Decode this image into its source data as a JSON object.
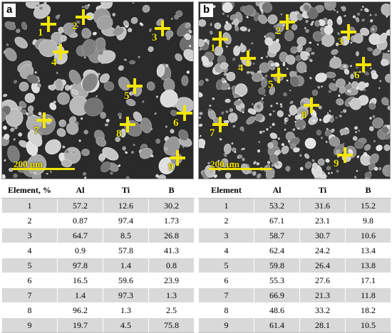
{
  "colors": {
    "marker": "#f3e600",
    "row_shade": "#d9d9d9"
  },
  "panel_a": {
    "letter": "a",
    "scale_label": "200 μm",
    "markers": [
      "1",
      "2",
      "3",
      "4",
      "5",
      "6",
      "7",
      "8",
      "9"
    ]
  },
  "panel_b": {
    "letter": "b",
    "scale_label": "200 μm",
    "markers": [
      "1",
      "2",
      "3",
      "4",
      "5",
      "6",
      "7",
      "8",
      "9"
    ]
  },
  "table_a": {
    "headers": [
      "Element, %",
      "Al",
      "Ti",
      "B"
    ],
    "rows": [
      [
        "1",
        "57.2",
        "12.6",
        "30.2"
      ],
      [
        "2",
        "0.87",
        "97.4",
        "1.73"
      ],
      [
        "3",
        "64.7",
        "8.5",
        "26.8"
      ],
      [
        "4",
        "0.9",
        "57.8",
        "41.3"
      ],
      [
        "5",
        "97.8",
        "1.4",
        "0.8"
      ],
      [
        "6",
        "16.5",
        "59.6",
        "23.9"
      ],
      [
        "7",
        "1.4",
        "97.3",
        "1.3"
      ],
      [
        "8",
        "96.2",
        "1.3",
        "2.5"
      ],
      [
        "9",
        "19.7",
        "4.5",
        "75.8"
      ]
    ]
  },
  "table_b": {
    "headers": [
      "Element",
      "Al",
      "Ti",
      "B"
    ],
    "rows": [
      [
        "1",
        "53.2",
        "31.6",
        "15.2"
      ],
      [
        "2",
        "67.1",
        "23.1",
        "9.8"
      ],
      [
        "3",
        "58.7",
        "30.7",
        "10.6"
      ],
      [
        "4",
        "62.4",
        "24.2",
        "13.4"
      ],
      [
        "5",
        "59.8",
        "26.4",
        "13.8"
      ],
      [
        "6",
        "55.3",
        "27.6",
        "17.1"
      ],
      [
        "7",
        "66.9",
        "21.3",
        "11.8"
      ],
      [
        "8",
        "48.6",
        "33.2",
        "18.2"
      ],
      [
        "9",
        "61.4",
        "28.1",
        "10.5"
      ]
    ]
  }
}
